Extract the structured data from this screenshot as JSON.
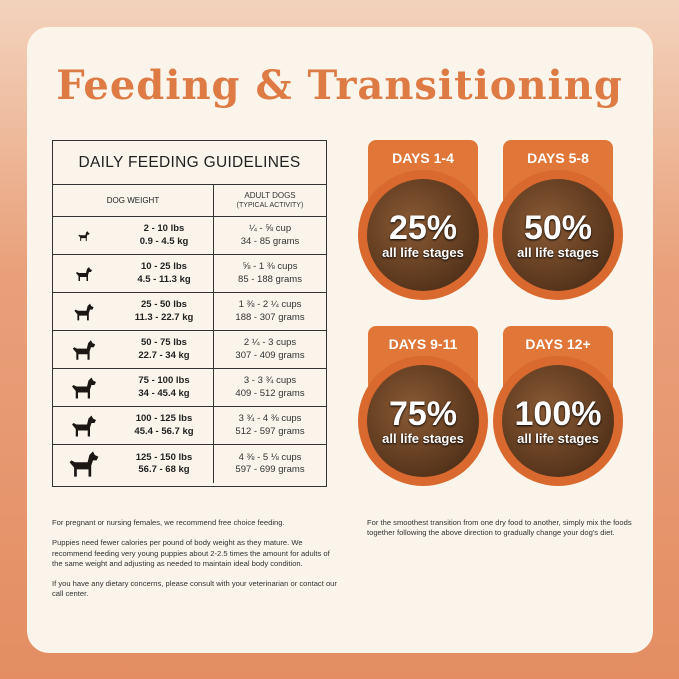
{
  "title": "Feeding & Transitioning",
  "table": {
    "title": "DAILY FEEDING GUIDELINES",
    "col1": "DOG WEIGHT",
    "col2": "ADULT DOGS",
    "col2_sub": "(TYPICAL ACTIVITY)",
    "rows": [
      {
        "lbs": "2 - 10 lbs",
        "kg": "0.9 - 4.5 kg",
        "cups": "¼ - ⅝ cup",
        "grams": "34 - 85 grams",
        "icon": "chihuahua-icon"
      },
      {
        "lbs": "10 - 25 lbs",
        "kg": "4.5 - 11.3 kg",
        "cups": "⅝ - 1 ⅜ cups",
        "grams": "85 - 188 grams",
        "icon": "french-bulldog-icon"
      },
      {
        "lbs": "25 - 50 lbs",
        "kg": "11.3 - 22.7 kg",
        "cups": "1 ⅜ - 2 ¼ cups",
        "grams": "188 - 307 grams",
        "icon": "husky-icon"
      },
      {
        "lbs": "50 - 75 lbs",
        "kg": "22.7 - 34 kg",
        "cups": "2 ¼ - 3 cups",
        "grams": "307 - 409 grams",
        "icon": "shepherd-icon"
      },
      {
        "lbs": "75 - 100 lbs",
        "kg": "34 - 45.4 kg",
        "cups": "3 - 3 ¾ cups",
        "grams": "409 - 512 grams",
        "icon": "great-dane-icon"
      },
      {
        "lbs": "100 - 125 lbs",
        "kg": "45.4 - 56.7 kg",
        "cups": "3 ¾ - 4 ⅜ cups",
        "grams": "512 - 597 grams",
        "icon": "labrador-icon"
      },
      {
        "lbs": "125 - 150 lbs",
        "kg": "56.7 - 68 kg",
        "cups": "4 ⅜ - 5 ⅛ cups",
        "grams": "597 - 699 grams",
        "icon": "newfoundland-icon"
      }
    ]
  },
  "stages": [
    {
      "label": "DAYS 1-4",
      "pct": "25%",
      "sub": "all life stages"
    },
    {
      "label": "DAYS 5-8",
      "pct": "50%",
      "sub": "all life stages"
    },
    {
      "label": "DAYS 9-11",
      "pct": "75%",
      "sub": "all life stages"
    },
    {
      "label": "DAYS 12+",
      "pct": "100%",
      "sub": "all life stages"
    }
  ],
  "notes_left": [
    "For pregnant or nursing females, we recommend free choice feeding.",
    "Puppies need fewer calories per pound of body weight as they mature. We recommend feeding very young puppies about 2-2.5 times the amount for adults of the same weight and adjusting as needed to maintain ideal body condition.",
    "If you have any dietary concerns, please consult with your veterinarian or contact our call center."
  ],
  "note_right": "For the smoothest transition from one dry food to another, simply mix the foods together following the above direction to gradually change your dog's diet.",
  "colors": {
    "accent": "#e07638",
    "card": "#faf4ea",
    "title": "#de7a43"
  }
}
